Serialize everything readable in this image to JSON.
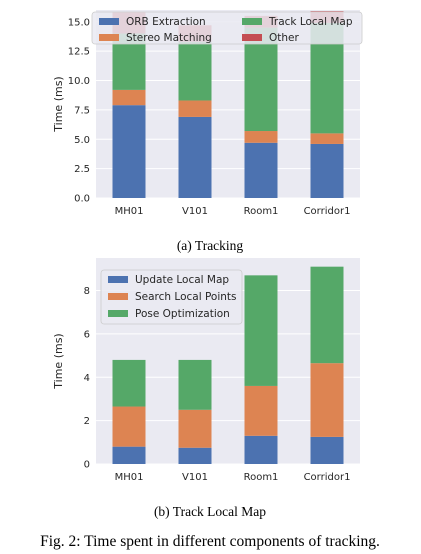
{
  "figure_caption": "Fig. 2: Time spent in different components of tracking.",
  "colors": {
    "blue": "#4c72b0",
    "orange": "#dd8452",
    "green": "#55a868",
    "red": "#c44e52",
    "plot_bg": "#eaeaf2",
    "grid": "#ffffff"
  },
  "chart_data": [
    {
      "type": "bar",
      "stacked": true,
      "caption": "(a) Tracking",
      "ylabel": "Time (ms)",
      "xlabel": "",
      "categories": [
        "MH01",
        "V101",
        "Room1",
        "Corridor1"
      ],
      "ylim": [
        0,
        16
      ],
      "yticks": [
        "0.0",
        "2.5",
        "5.0",
        "7.5",
        "10.0",
        "12.5",
        "15.0"
      ],
      "ytick_values": [
        0,
        2.5,
        5,
        7.5,
        10,
        12.5,
        15
      ],
      "grid": true,
      "legend_placement": "top",
      "series": [
        {
          "name": "ORB Extraction",
          "color": "#4c72b0",
          "values": [
            7.9,
            6.9,
            4.7,
            4.6
          ]
        },
        {
          "name": "Stereo Matching",
          "color": "#dd8452",
          "values": [
            1.3,
            1.4,
            1.0,
            0.9
          ]
        },
        {
          "name": "Track Local Map",
          "color": "#55a868",
          "values": [
            4.8,
            5.0,
            8.8,
            9.4
          ]
        },
        {
          "name": "Other",
          "color": "#c44e52",
          "values": [
            1.8,
            1.4,
            1.0,
            1.0
          ]
        }
      ]
    },
    {
      "type": "bar",
      "stacked": true,
      "caption": "(b) Track Local Map",
      "ylabel": "Time (ms)",
      "xlabel": "",
      "categories": [
        "MH01",
        "V101",
        "Room1",
        "Corridor1"
      ],
      "ylim": [
        0,
        9.5
      ],
      "yticks": [
        "0",
        "2",
        "4",
        "6",
        "8"
      ],
      "ytick_values": [
        0,
        2,
        4,
        6,
        8
      ],
      "grid": true,
      "legend_placement": "top-left",
      "series": [
        {
          "name": "Update Local Map",
          "color": "#4c72b0",
          "values": [
            0.8,
            0.75,
            1.3,
            1.25
          ]
        },
        {
          "name": "Search Local Points",
          "color": "#dd8452",
          "values": [
            1.85,
            1.75,
            2.3,
            3.4
          ]
        },
        {
          "name": "Pose Optimization",
          "color": "#55a868",
          "values": [
            2.15,
            2.3,
            5.1,
            4.45
          ]
        }
      ]
    }
  ]
}
